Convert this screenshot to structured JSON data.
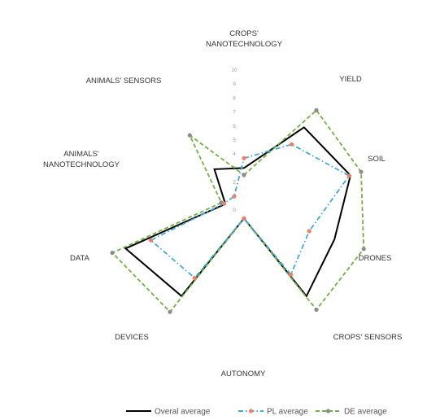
{
  "chart_data": {
    "type": "radar",
    "axes": [
      [
        "CROPS'",
        "NANOTECHNOLOGY"
      ],
      [
        "YIELD"
      ],
      [
        "SOIL"
      ],
      [
        "DRONES"
      ],
      [
        "CROPS' SENSORS"
      ],
      [
        "AUTONOMY"
      ],
      [
        "DEVICES"
      ],
      [
        "DATA"
      ],
      [
        "ANIMALS'",
        "NANOTECHNOLOGY"
      ],
      [
        "ANIMALS' SENSORS"
      ]
    ],
    "ticks": [
      "0",
      "1",
      "2",
      "3",
      "4",
      "5",
      "6",
      "7",
      "8",
      "9",
      "10"
    ],
    "range": [
      0,
      10
    ],
    "legend_position": "bottom",
    "series": [
      {
        "name": "Overal average",
        "color": "#000000",
        "dash": "solid",
        "values": [
          3.0,
          7.3,
          8.0,
          6.8,
          7.6,
          0.6,
          7.6,
          8.9,
          1.4,
          3.6
        ]
      },
      {
        "name": "PL average",
        "color": "#3fa9e0",
        "dash": "dashdot",
        "marker_color": "#ef7f6b",
        "values": [
          3.7,
          5.8,
          7.9,
          4.9,
          5.7,
          0.6,
          6.0,
          7.0,
          1.5,
          1.2
        ]
      },
      {
        "name": "DE average",
        "color": "#6db33f",
        "dash": "dash",
        "marker_color": "#8c8c8c",
        "values": [
          2.5,
          8.8,
          8.8,
          9.0,
          8.8,
          0.6,
          9.0,
          9.9,
          1.7,
          6.6
        ]
      }
    ]
  }
}
